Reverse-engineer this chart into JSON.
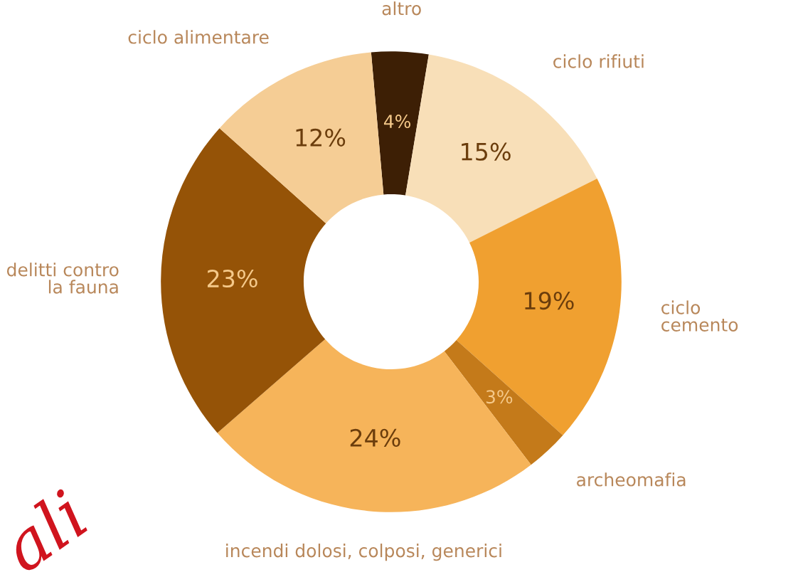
{
  "chart_data": {
    "type": "donut",
    "categories": [
      "altro",
      "ciclo rifiuti",
      "ciclo\ncemento",
      "archeomafia",
      "incendi dolosi, colposi, generici",
      "delitti contro\nla fauna",
      "ciclo alimentare"
    ],
    "values": [
      4,
      15,
      19,
      3,
      24,
      23,
      12
    ],
    "colors": [
      "#3d1f05",
      "#f8dfb8",
      "#f0a030",
      "#c47a1a",
      "#f6b45a",
      "#955307",
      "#f5cd95"
    ],
    "value_labels": [
      "4%",
      "15%",
      "19%",
      "3%",
      "24%",
      "23%",
      "12%"
    ],
    "annotations": [
      "ali"
    ],
    "legend": false
  }
}
